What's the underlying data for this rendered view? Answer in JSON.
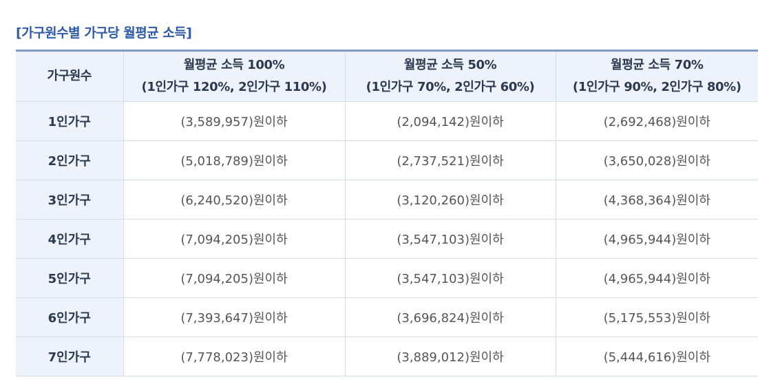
{
  "title": "[가구원수별 가구당 월평균 소득]",
  "table": {
    "headers": [
      {
        "line1": "가구원수",
        "line2": ""
      },
      {
        "line1": "월평균 소득 100%",
        "line2": "(1인가구 120%, 2인가구 110%)"
      },
      {
        "line1": "월평균 소득 50%",
        "line2": "(1인가구 70%, 2인가구 60%)"
      },
      {
        "line1": "월평균 소득 70%",
        "line2": "(1인가구 90%, 2인가구 80%)"
      }
    ],
    "rows": [
      {
        "household": "1인가구",
        "v100": "(3,589,957)원이하",
        "v50": "(2,094,142)원이하",
        "v70": "(2,692,468)원이하"
      },
      {
        "household": "2인가구",
        "v100": "(5,018,789)원이하",
        "v50": "(2,737,521)원이하",
        "v70": "(3,650,028)원이하"
      },
      {
        "household": "3인가구",
        "v100": "(6,240,520)원이하",
        "v50": "(3,120,260)원이하",
        "v70": "(4,368,364)원이하"
      },
      {
        "household": "4인가구",
        "v100": "(7,094,205)원이하",
        "v50": "(3,547,103)원이하",
        "v70": "(4,965,944)원이하"
      },
      {
        "household": "5인가구",
        "v100": "(7,094,205)원이하",
        "v50": "(3,547,103)원이하",
        "v70": "(4,965,944)원이하"
      },
      {
        "household": "6인가구",
        "v100": "(7,393,647)원이하",
        "v50": "(3,696,824)원이하",
        "v70": "(5,175,553)원이하"
      },
      {
        "household": "7인가구",
        "v100": "(7,778,023)원이하",
        "v50": "(3,889,012)원이하",
        "v70": "(5,444,616)원이하"
      }
    ]
  },
  "colors": {
    "title": "#2e5aa8",
    "header_bg": "#edf2fb",
    "top_border": "#7d99c4",
    "cell_text": "#555555"
  }
}
